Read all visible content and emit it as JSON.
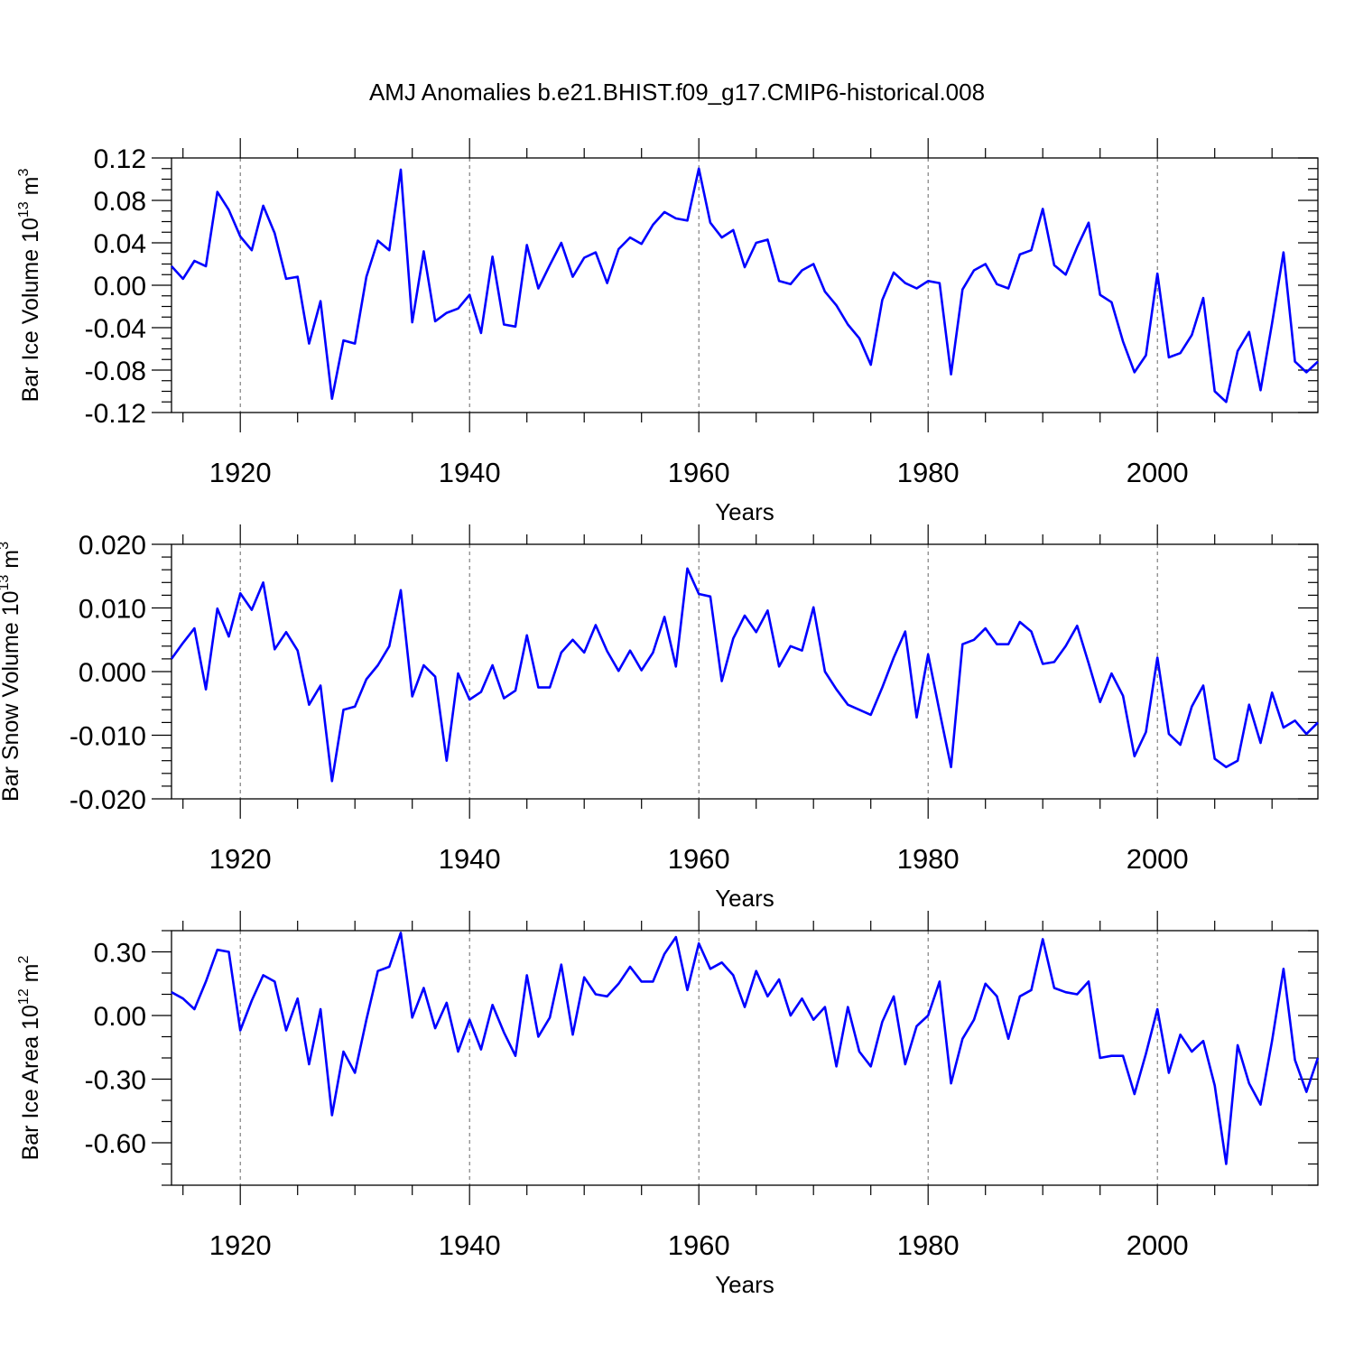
{
  "chart_data": {
    "title": "AMJ Anomalies b.e21.BHIST.f09_g17.CMIP6-historical.008",
    "type": "line",
    "xlim": [
      1914,
      2014
    ],
    "x_ticks": [
      "1920",
      "1940",
      "1960",
      "1980",
      "2000"
    ],
    "x_tick_values": [
      1920,
      1940,
      1960,
      1980,
      2000
    ],
    "x_minor_step": 5,
    "vertical_grid_at": [
      1920,
      1940,
      1960,
      1980,
      2000
    ],
    "panels": [
      {
        "name": "ice-volume",
        "ylabel": "Bar Ice Volume 10",
        "ylabel_exp": "13",
        "ylabel_unit": " m",
        "ylabel_unit_exp": "3",
        "xlabel": "Years",
        "ylim": [
          -0.12,
          0.12
        ],
        "y_ticks": [
          "-0.12",
          "-0.08",
          "-0.04",
          "0.00",
          "0.04",
          "0.08",
          "0.12"
        ],
        "y_tick_values": [
          -0.12,
          -0.08,
          -0.04,
          0.0,
          0.04,
          0.08,
          0.12
        ],
        "y_minor_step": 0.01,
        "series": [
          {
            "name": "Bar Ice Volume",
            "color": "#0000ff",
            "x_start": 1914,
            "values": [
              0.018,
              0.006,
              0.023,
              0.018,
              0.088,
              0.071,
              0.046,
              0.033,
              0.075,
              0.049,
              0.006,
              0.008,
              -0.055,
              -0.015,
              -0.107,
              -0.052,
              -0.055,
              0.008,
              0.042,
              0.033,
              0.109,
              -0.035,
              0.032,
              -0.034,
              -0.026,
              -0.022,
              -0.009,
              -0.045,
              0.027,
              -0.037,
              -0.039,
              0.038,
              -0.003,
              0.019,
              0.04,
              0.008,
              0.026,
              0.031,
              0.002,
              0.034,
              0.045,
              0.039,
              0.057,
              0.069,
              0.063,
              0.061,
              0.11,
              0.059,
              0.045,
              0.052,
              0.017,
              0.04,
              0.043,
              0.004,
              0.001,
              0.014,
              0.02,
              -0.006,
              -0.019,
              -0.037,
              -0.05,
              -0.075,
              -0.014,
              0.012,
              0.002,
              -0.003,
              0.004,
              0.002,
              -0.084,
              -0.004,
              0.014,
              0.02,
              0.001,
              -0.003,
              0.029,
              0.033,
              0.072,
              0.019,
              0.01,
              0.036,
              0.059,
              -0.009,
              -0.016,
              -0.053,
              -0.082,
              -0.066,
              0.011,
              -0.068,
              -0.064,
              -0.047,
              -0.012,
              -0.1,
              -0.11,
              -0.062,
              -0.044,
              -0.099,
              -0.036,
              0.031,
              -0.072,
              -0.082,
              -0.072
            ]
          }
        ]
      },
      {
        "name": "snow-volume",
        "ylabel": "Bar Snow Volume 10",
        "ylabel_exp": "13",
        "ylabel_unit": " m",
        "ylabel_unit_exp": "3",
        "xlabel": "Years",
        "ylim": [
          -0.02,
          0.02
        ],
        "y_ticks": [
          "-0.020",
          "-0.010",
          "0.000",
          "0.010",
          "0.020"
        ],
        "y_tick_values": [
          -0.02,
          -0.01,
          0.0,
          0.01,
          0.02
        ],
        "y_minor_step": 0.002,
        "series": [
          {
            "name": "Bar Snow Volume",
            "color": "#0000ff",
            "x_start": 1914,
            "values": [
              0.002,
              0.0045,
              0.0068,
              -0.0028,
              0.0099,
              0.0055,
              0.0123,
              0.0097,
              0.014,
              0.0035,
              0.0062,
              0.0033,
              -0.0052,
              -0.0022,
              -0.0172,
              -0.006,
              -0.0055,
              -0.0012,
              0.001,
              0.004,
              0.0128,
              -0.0039,
              0.001,
              -0.0008,
              -0.014,
              -0.0003,
              -0.0044,
              -0.0032,
              0.001,
              -0.0042,
              -0.003,
              0.0057,
              -0.0025,
              -0.0025,
              0.003,
              0.005,
              0.003,
              0.0073,
              0.0032,
              0.0001,
              0.0033,
              0.0002,
              0.003,
              0.0086,
              0.0008,
              0.0162,
              0.0122,
              0.0118,
              -0.0015,
              0.0052,
              0.0088,
              0.0062,
              0.0096,
              0.0008,
              0.004,
              0.0033,
              0.0101,
              0.0,
              -0.0028,
              -0.0052,
              -0.006,
              -0.0068,
              -0.0025,
              0.0022,
              0.0063,
              -0.0072,
              0.0027,
              -0.0063,
              -0.015,
              0.0043,
              0.005,
              0.0068,
              0.0043,
              0.0043,
              0.0078,
              0.0063,
              0.0012,
              0.0015,
              0.004,
              0.0072,
              0.0013,
              -0.0048,
              -0.0003,
              -0.0038,
              -0.0133,
              -0.0095,
              0.0022,
              -0.0098,
              -0.0115,
              -0.0055,
              -0.0022,
              -0.0137,
              -0.015,
              -0.014,
              -0.0052,
              -0.0112,
              -0.0033,
              -0.0088,
              -0.0077,
              -0.0098,
              -0.008
            ]
          }
        ]
      },
      {
        "name": "ice-area",
        "ylabel": "Bar Ice Area 10",
        "ylabel_exp": "12",
        "ylabel_unit": " m",
        "ylabel_unit_exp": "2",
        "xlabel": "Years",
        "ylim": [
          -0.8,
          0.4
        ],
        "y_ticks": [
          "-0.60",
          "-0.30",
          "0.00",
          "0.30"
        ],
        "y_tick_values": [
          -0.6,
          -0.3,
          0.0,
          0.3
        ],
        "y_minor_step": 0.1,
        "series": [
          {
            "name": "Bar Ice Area",
            "color": "#0000ff",
            "x_start": 1914,
            "values": [
              0.11,
              0.08,
              0.03,
              0.16,
              0.31,
              0.3,
              -0.07,
              0.07,
              0.19,
              0.16,
              -0.07,
              0.08,
              -0.23,
              0.03,
              -0.47,
              -0.17,
              -0.27,
              -0.02,
              0.21,
              0.23,
              0.39,
              -0.01,
              0.13,
              -0.06,
              0.06,
              -0.17,
              -0.02,
              -0.16,
              0.05,
              -0.08,
              -0.19,
              0.19,
              -0.1,
              -0.01,
              0.24,
              -0.09,
              0.18,
              0.1,
              0.09,
              0.15,
              0.23,
              0.16,
              0.16,
              0.29,
              0.37,
              0.12,
              0.34,
              0.22,
              0.25,
              0.19,
              0.04,
              0.21,
              0.09,
              0.17,
              0.0,
              0.08,
              -0.02,
              0.04,
              -0.24,
              0.04,
              -0.17,
              -0.24,
              -0.03,
              0.09,
              -0.23,
              -0.05,
              0.0,
              0.16,
              -0.32,
              -0.11,
              -0.02,
              0.15,
              0.09,
              -0.11,
              0.09,
              0.12,
              0.36,
              0.13,
              0.11,
              0.1,
              0.16,
              -0.2,
              -0.19,
              -0.19,
              -0.37,
              -0.18,
              0.03,
              -0.27,
              -0.09,
              -0.17,
              -0.12,
              -0.33,
              -0.7,
              -0.14,
              -0.32,
              -0.42,
              -0.12,
              0.22,
              -0.21,
              -0.36,
              -0.2
            ]
          }
        ]
      }
    ]
  }
}
